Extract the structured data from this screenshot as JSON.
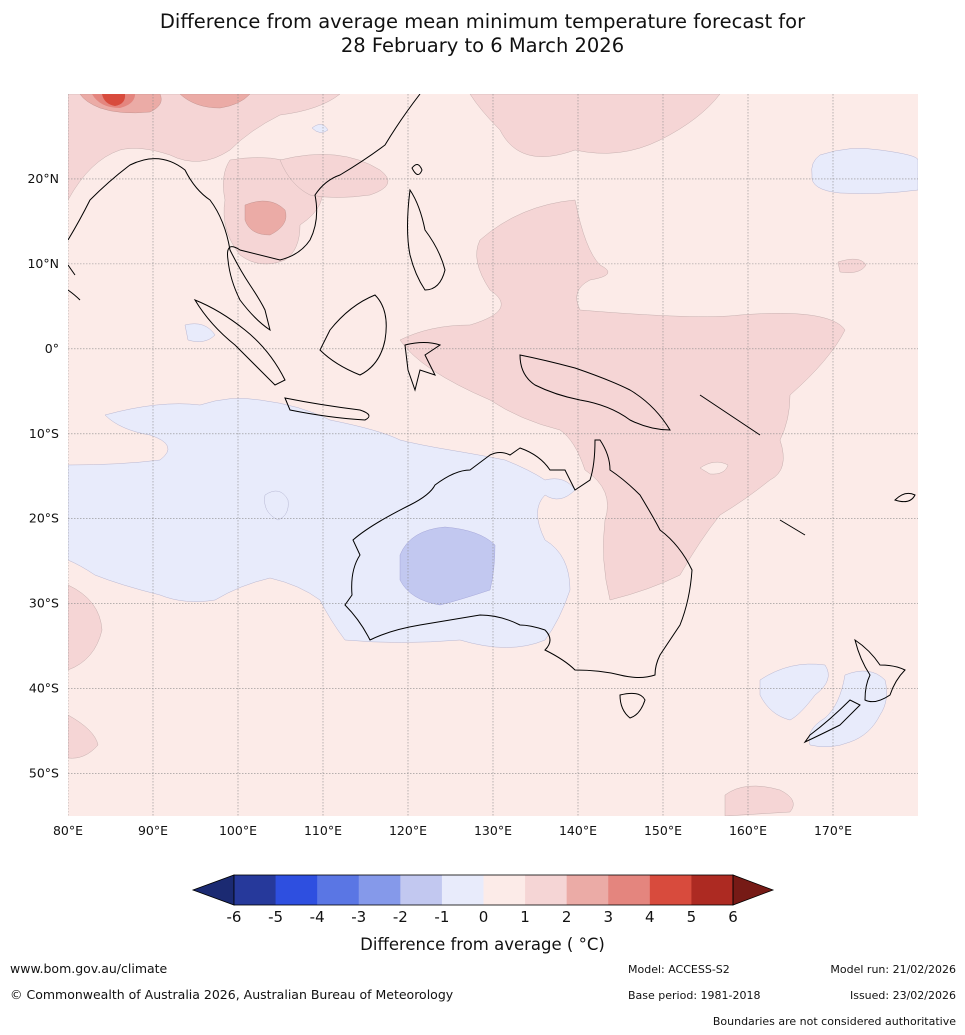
{
  "title_line1": "Difference from average mean minimum temperature forecast for",
  "title_line2": "28 February to 6 March 2026",
  "map": {
    "lon_range": [
      80,
      180
    ],
    "lat_range": [
      -55,
      30
    ],
    "lon_ticks": [
      {
        "value": 80,
        "label": "80°E"
      },
      {
        "value": 90,
        "label": "90°E"
      },
      {
        "value": 100,
        "label": "100°E"
      },
      {
        "value": 110,
        "label": "110°E"
      },
      {
        "value": 120,
        "label": "120°E"
      },
      {
        "value": 130,
        "label": "130°E"
      },
      {
        "value": 140,
        "label": "140°E"
      },
      {
        "value": 150,
        "label": "150°E"
      },
      {
        "value": 160,
        "label": "160°E"
      },
      {
        "value": 170,
        "label": "170°E"
      }
    ],
    "lat_ticks": [
      {
        "value": 20,
        "label": "20°N"
      },
      {
        "value": 10,
        "label": "10°N"
      },
      {
        "value": 0,
        "label": "0°"
      },
      {
        "value": -10,
        "label": "10°S"
      },
      {
        "value": -20,
        "label": "20°S"
      },
      {
        "value": -30,
        "label": "30°S"
      },
      {
        "value": -40,
        "label": "40°S"
      },
      {
        "value": -50,
        "label": "50°S"
      }
    ],
    "background_color": "#fcebe8",
    "anomaly_colors": {
      "cold_-2_-1": "#c2c8f0",
      "cold_-1_0": "#e8ebfb",
      "warm_0_1": "#fcebe8",
      "warm_1_2": "#f5d5d5",
      "warm_2_3": "#ebaba6",
      "warm_3_4": "#e4857e",
      "warm_4_5": "#d84b3d"
    }
  },
  "colorbar": {
    "colors": [
      "#26399b",
      "#2e4fe0",
      "#5a76e4",
      "#8599ea",
      "#c2c8f0",
      "#e8ebfb",
      "#fcebe8",
      "#f5d5d5",
      "#ebaba6",
      "#e4857e",
      "#d84b3d",
      "#ad2a22"
    ],
    "low_extend_color": "#1b2a72",
    "high_extend_color": "#761a16",
    "tick_labels": [
      "-6",
      "-5",
      "-4",
      "-3",
      "-2",
      "-1",
      "0",
      "1",
      "2",
      "3",
      "4",
      "5",
      "6"
    ],
    "label": "Difference from average ( °C)"
  },
  "footer": {
    "website": "www.bom.gov.au/climate",
    "copyright": "© Commonwealth of Australia 2026, Australian Bureau of Meteorology",
    "model": "Model: ACCESS-S2",
    "base_period": "Base period: 1981-2018",
    "model_run": "Model run: 21/02/2026",
    "issued": "Issued: 23/02/2026",
    "disclaimer": "Boundaries are not considered authoritative"
  }
}
